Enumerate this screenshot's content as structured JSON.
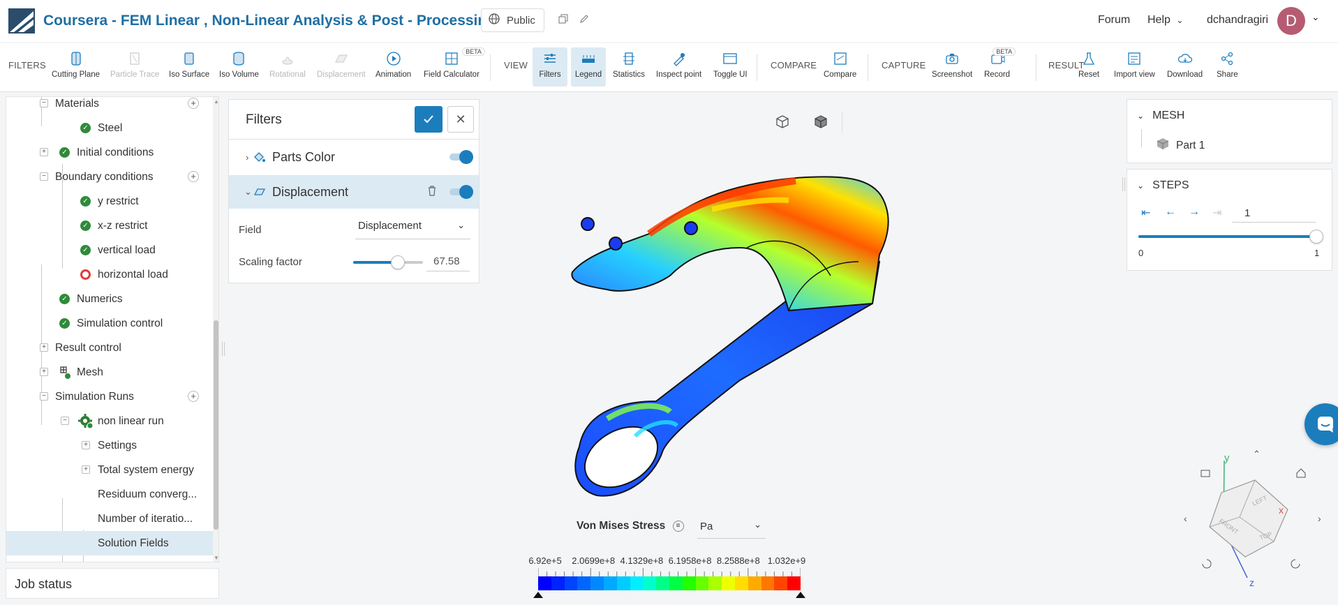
{
  "header": {
    "title": "Coursera - FEM Linear , Non-Linear Analysis & Post - Processing Tra...",
    "visibility": "Public",
    "forum": "Forum",
    "help": "Help",
    "username": "dchandragiri",
    "avatar_letter": "D"
  },
  "toolbar": {
    "filters_label": "FILTERS",
    "view_label": "VIEW",
    "compare_label": "COMPARE",
    "capture_label": "CAPTURE",
    "result_label": "RESULT",
    "beta": "BETA",
    "items": {
      "cutting_plane": "Cutting Plane",
      "particle_trace": "Particle Trace",
      "iso_surface": "Iso Surface",
      "iso_volume": "Iso Volume",
      "rotational": "Rotational",
      "displacement": "Displacement",
      "animation": "Animation",
      "field_calculator": "Field Calculator",
      "filters": "Filters",
      "legend": "Legend",
      "statistics": "Statistics",
      "inspect_point": "Inspect point",
      "toggle_ui": "Toggle UI",
      "compare": "Compare",
      "screenshot": "Screenshot",
      "record": "Record",
      "reset": "Reset",
      "import_view": "Import view",
      "download": "Download",
      "share": "Share"
    }
  },
  "tree": {
    "items": [
      {
        "label": "Materials"
      },
      {
        "label": "Steel"
      },
      {
        "label": "Initial conditions"
      },
      {
        "label": "Boundary conditions"
      },
      {
        "label": "y restrict"
      },
      {
        "label": "x-z restrict"
      },
      {
        "label": "vertical load"
      },
      {
        "label": "horizontal load"
      },
      {
        "label": "Numerics"
      },
      {
        "label": "Simulation control"
      },
      {
        "label": "Result control"
      },
      {
        "label": "Mesh"
      },
      {
        "label": "Simulation Runs"
      },
      {
        "label": "non linear run"
      },
      {
        "label": "Settings"
      },
      {
        "label": "Total system energy"
      },
      {
        "label": "Residuum converg..."
      },
      {
        "label": "Number of iteratio..."
      },
      {
        "label": "Solution Fields"
      }
    ],
    "job_status": "Job status"
  },
  "filters_panel": {
    "title": "Filters",
    "parts_color": "Parts Color",
    "displacement": "Displacement",
    "field_label": "Field",
    "field_value": "Displacement",
    "scaling_label": "Scaling factor",
    "scaling_value": "67.58",
    "scaling_slider_fraction": 0.64
  },
  "mesh_panel": {
    "title": "MESH",
    "part": "Part 1"
  },
  "steps_panel": {
    "title": "STEPS",
    "current_step": "1",
    "min": "0",
    "max": "1",
    "slider_fraction": 1.0
  },
  "legend": {
    "title": "Von Mises Stress",
    "unit": "Pa",
    "ticks": [
      "6.92e+5",
      "2.0699e+8",
      "4.1329e+8",
      "6.1958e+8",
      "8.2588e+8",
      "1.032e+9"
    ],
    "colors": [
      "#0000ff",
      "#0022ff",
      "#0044ff",
      "#0066ff",
      "#0088ff",
      "#00aaff",
      "#00ccff",
      "#00eeff",
      "#00ffcc",
      "#00ff88",
      "#00ff44",
      "#22ff00",
      "#66ff00",
      "#aaff00",
      "#eeff00",
      "#ffdd00",
      "#ffaa00",
      "#ff7700",
      "#ff4400",
      "#ff0000"
    ]
  },
  "viewcube": {
    "axis_y": "y",
    "axis_x": "x",
    "axis_z": "z",
    "face_left": "LEFT",
    "face_front": "FRONT",
    "face_top": "TOP"
  }
}
